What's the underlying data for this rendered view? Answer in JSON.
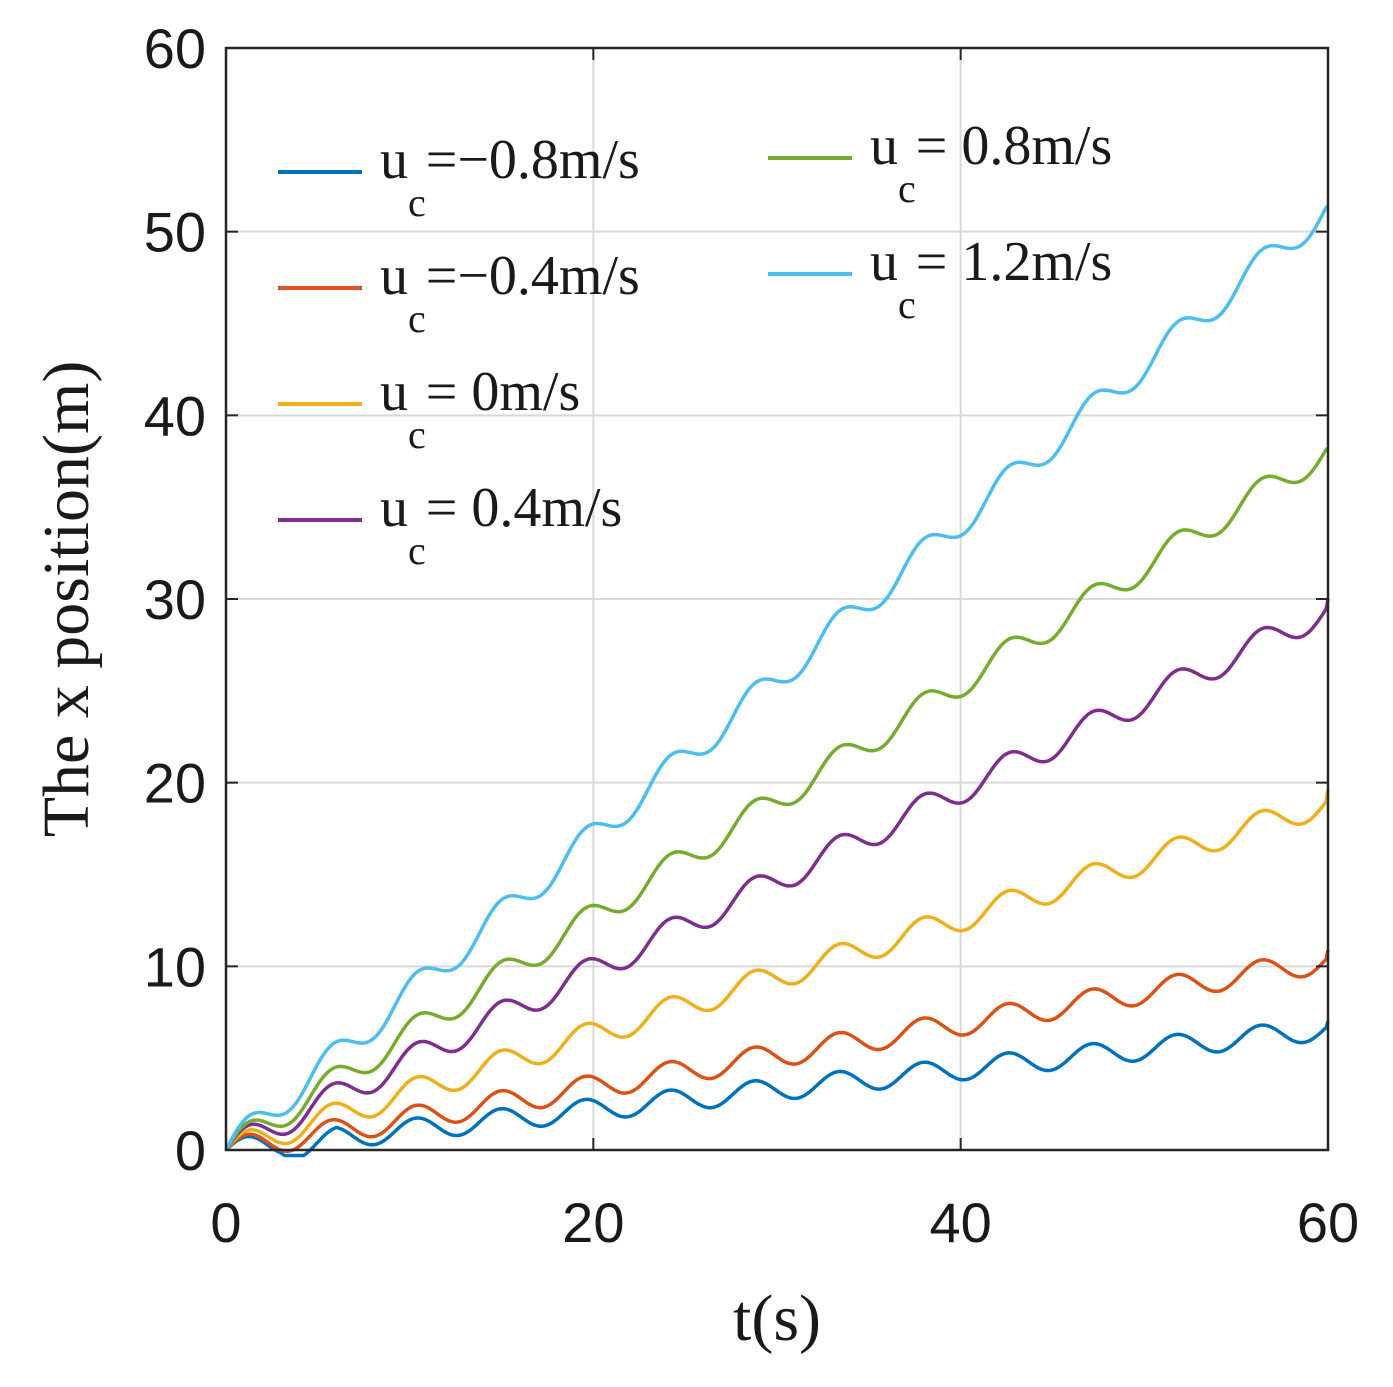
{
  "chart_data": {
    "type": "line",
    "title": "",
    "xlabel": "t(s)",
    "ylabel": "The x position(m)",
    "xlim": [
      0,
      60
    ],
    "ylim": [
      0,
      60
    ],
    "xticks": [
      0,
      20,
      40,
      60
    ],
    "yticks": [
      0,
      10,
      20,
      30,
      40,
      50,
      60
    ],
    "grid": true,
    "legend_position": "top-left",
    "wave": {
      "period": 4.6,
      "note": "per-series model: x(t) = slope*t + amplitude*sin(2*pi*t/period) (+ negative offset on the first oscillation for the lowest series)"
    },
    "series": [
      {
        "name": "u_c=-0.8m/s",
        "label_main": "u",
        "label_sub": "c",
        "label_rest": "=−0.8m/s",
        "color": "#0072BD",
        "slope": 0.11,
        "amplitude": 0.6,
        "end_value": 7.0
      },
      {
        "name": "u_c=-0.4m/s",
        "label_main": "u",
        "label_sub": "c",
        "label_rest": "=−0.4m/s",
        "color": "#D95319",
        "slope": 0.172,
        "amplitude": 0.65,
        "end_value": 10.9
      },
      {
        "name": "u_c=0m/s",
        "label_main": "u",
        "label_sub": "c",
        "label_rest": "= 0m/s",
        "color": "#EDB120",
        "slope": 0.315,
        "amplitude": 0.7,
        "end_value": 19.6
      },
      {
        "name": "u_c=0.4m/s",
        "label_main": "u",
        "label_sub": "c",
        "label_rest": "= 0.4m/s",
        "color": "#7E2F8E",
        "slope": 0.49,
        "amplitude": 0.75,
        "end_value": 30.0
      },
      {
        "name": "u_c=0.8m/s",
        "label_main": "u",
        "label_sub": "c",
        "label_rest": "= 0.8m/s",
        "color": "#77AC30",
        "slope": 0.635,
        "amplitude": 0.75,
        "end_value": 38.2
      },
      {
        "name": "u_c=1.2m/s",
        "label_main": "u",
        "label_sub": "c",
        "label_rest": "= 1.2m/s",
        "color": "#4DBEEE",
        "slope": 0.855,
        "amplitude": 0.8,
        "end_value": 51.4
      }
    ]
  }
}
